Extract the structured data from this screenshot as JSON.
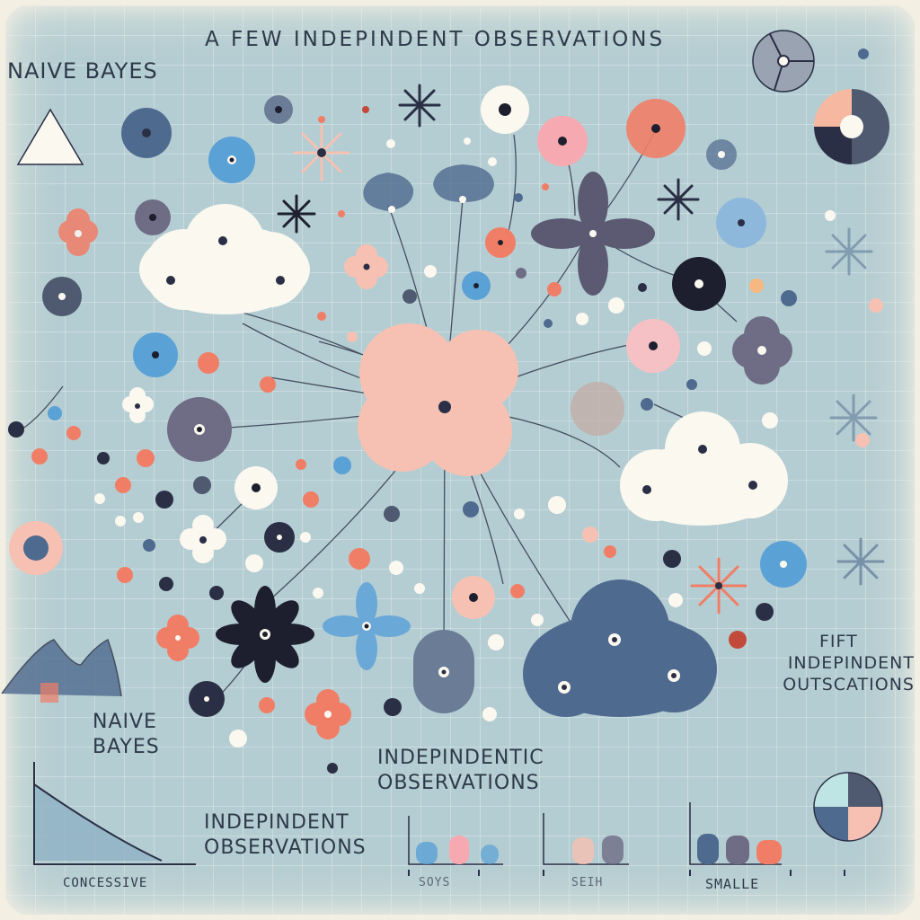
{
  "labels": {
    "top_title": "A FEW INDEPINDENT OBSERVATIONS",
    "top_left_title": "NAIVE BAYES",
    "mid_left_line1": "NAIVE",
    "mid_left_line2": "BAYES",
    "center_line1": "INDEPINDENTIC",
    "center_line2": "OBSERVATIONS",
    "bottom_left_line1": "INDEPINDENT",
    "bottom_left_line2": "OBSERVATIONS",
    "right_line1": "FIFT",
    "right_line2": "INDEPINDENT",
    "right_line3": "OUTSCATIONS",
    "axis_left": "CONCESSIVE",
    "axis_mid1": "SOYS",
    "axis_mid2": "SEIH",
    "axis_right": "SMALLE"
  },
  "colors": {
    "background": "#b4cdd2",
    "navy": "#2a2f45",
    "slate_blue": "#4f6a8f",
    "pink": "#f6c1b2",
    "coral": "#f07e66",
    "sky_blue": "#5aa1d6",
    "purple_grey": "#5c5a73",
    "cream": "#fbf8f0"
  }
}
